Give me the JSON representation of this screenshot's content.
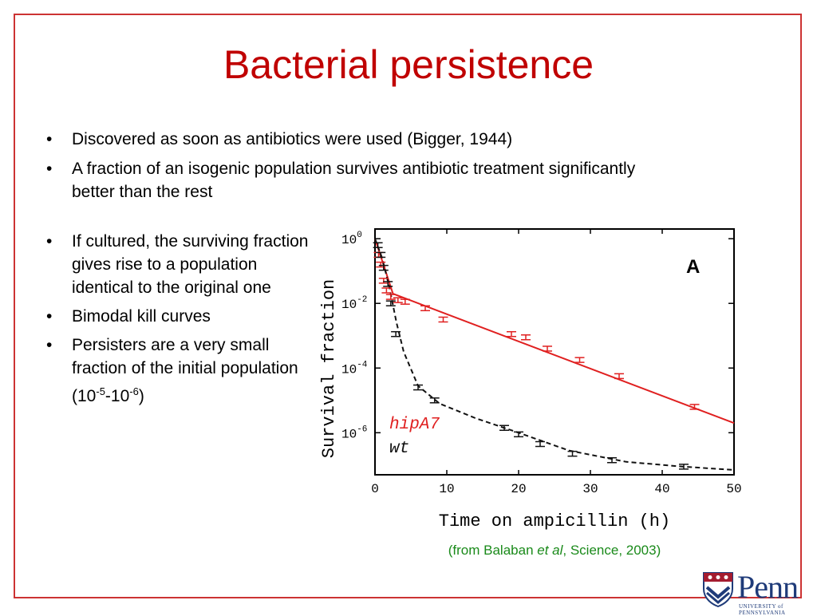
{
  "slide": {
    "title": "Bacterial persistence",
    "bullets_top": [
      "Discovered as soon as antibiotics were used (Bigger, 1944)",
      "A fraction of an isogenic population survives antibiotic treatment significantly better than the rest"
    ],
    "bullets_left": [
      "If cultured, the surviving fraction gives rise to a population identical to the original one",
      "Bimodal kill curves"
    ],
    "bullet_persisters": {
      "text": "Persisters are a very small fraction of the initial population (10",
      "exp1": "-5",
      "mid": "-10",
      "exp2": "-6",
      "end": ")"
    },
    "bullet_symbol": "•",
    "caption": {
      "before": "(from Balaban ",
      "italic": "et al",
      "after": ", Science, 2003)"
    },
    "logo": {
      "word": "Penn",
      "sub": "UNIVERSITY of PENNSYLVANIA"
    }
  },
  "chart_data": {
    "type": "line",
    "panel_label": "A",
    "xlabel": "Time on ampicillin (h)",
    "ylabel": "Survival fraction",
    "xlim": [
      0,
      50
    ],
    "ylim_log10": [
      -7.3,
      0.3
    ],
    "y_scale": "log",
    "x_ticks": [
      0,
      10,
      20,
      30,
      40,
      50
    ],
    "y_ticks": [
      {
        "base": "10",
        "exp": "0",
        "value": 0
      },
      {
        "base": "10",
        "exp": "-2",
        "value": -2
      },
      {
        "base": "10",
        "exp": "-4",
        "value": -4
      },
      {
        "base": "10",
        "exp": "-6",
        "value": -6
      }
    ],
    "series": [
      {
        "name": "hipA7",
        "color": "#e02020",
        "line_style": "solid",
        "points": [
          {
            "x": 0.5,
            "log10y": -0.5
          },
          {
            "x": 0.8,
            "log10y": -0.8
          },
          {
            "x": 1.2,
            "log10y": -1.3
          },
          {
            "x": 1.6,
            "log10y": -1.6
          },
          {
            "x": 2.2,
            "log10y": -1.8
          },
          {
            "x": 3.2,
            "log10y": -1.9
          },
          {
            "x": 4.2,
            "log10y": -1.95
          },
          {
            "x": 7,
            "log10y": -2.15
          },
          {
            "x": 9.5,
            "log10y": -2.5
          },
          {
            "x": 19,
            "log10y": -2.95
          },
          {
            "x": 21,
            "log10y": -3.05
          },
          {
            "x": 24,
            "log10y": -3.4
          },
          {
            "x": 28.5,
            "log10y": -3.75
          },
          {
            "x": 34,
            "log10y": -4.25
          },
          {
            "x": 44.5,
            "log10y": -5.2
          }
        ],
        "fit": [
          {
            "x": 0,
            "log10y": 0
          },
          {
            "x": 2.5,
            "log10y": -1.7
          },
          {
            "x": 50,
            "log10y": -5.7
          }
        ]
      },
      {
        "name": "wt",
        "color": "#111111",
        "line_style": "dashed",
        "points": [
          {
            "x": 0.4,
            "log10y": -0.2
          },
          {
            "x": 0.8,
            "log10y": -0.5
          },
          {
            "x": 1.2,
            "log10y": -0.9
          },
          {
            "x": 1.8,
            "log10y": -1.4
          },
          {
            "x": 2.2,
            "log10y": -2.0
          },
          {
            "x": 2.9,
            "log10y": -2.95
          },
          {
            "x": 6,
            "log10y": -4.6
          },
          {
            "x": 8.3,
            "log10y": -5.0
          },
          {
            "x": 18,
            "log10y": -5.85
          },
          {
            "x": 20,
            "log10y": -6.05
          },
          {
            "x": 23,
            "log10y": -6.35
          },
          {
            "x": 27.5,
            "log10y": -6.65
          },
          {
            "x": 33,
            "log10y": -6.85
          },
          {
            "x": 43,
            "log10y": -7.05
          }
        ],
        "fit": [
          {
            "x": 0,
            "log10y": 0
          },
          {
            "x": 1,
            "log10y": -0.6
          },
          {
            "x": 2,
            "log10y": -1.5
          },
          {
            "x": 3,
            "log10y": -2.6
          },
          {
            "x": 4,
            "log10y": -3.5
          },
          {
            "x": 6,
            "log10y": -4.55
          },
          {
            "x": 9,
            "log10y": -5.1
          },
          {
            "x": 14,
            "log10y": -5.55
          },
          {
            "x": 20,
            "log10y": -6.0
          },
          {
            "x": 27,
            "log10y": -6.55
          },
          {
            "x": 35,
            "log10y": -6.9
          },
          {
            "x": 43,
            "log10y": -7.05
          },
          {
            "x": 50,
            "log10y": -7.15
          }
        ]
      }
    ]
  }
}
